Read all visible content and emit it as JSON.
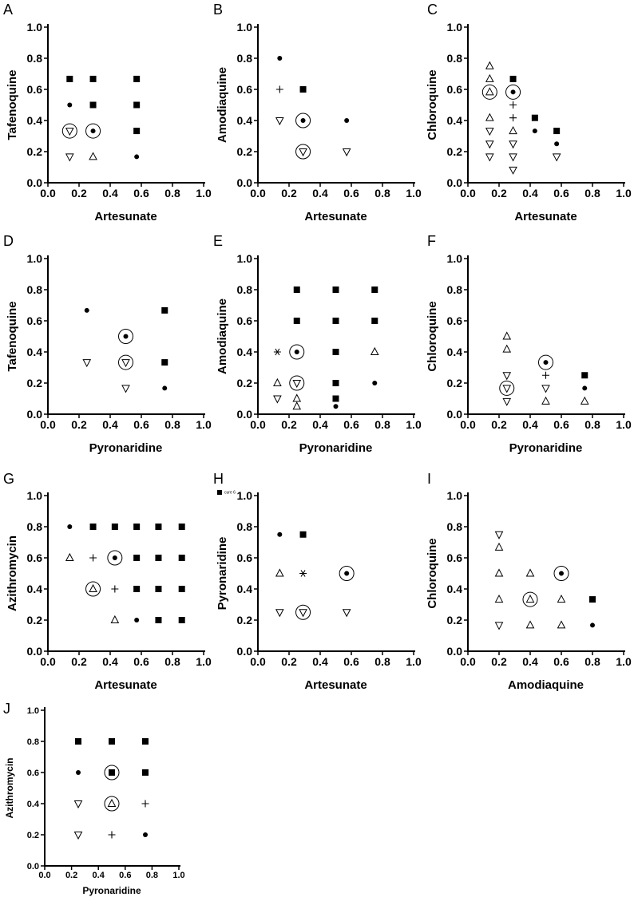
{
  "figure": {
    "legend_label": "cure 6"
  },
  "marker_names": {
    "square": "filled-square",
    "dot": "filled-dot",
    "tri_up": "open-triangle-up",
    "tri_down": "open-triangle-down",
    "plus": "plus",
    "star": "asterisk",
    "ring": "circle-highlight"
  },
  "chart_data": [
    {
      "id": "A",
      "type": "scatter",
      "panel_label": "A",
      "xlabel": "Artesunate",
      "ylabel": "Tafenoquine",
      "xlim": [
        0,
        1
      ],
      "ylim": [
        0,
        1
      ],
      "xticks": [
        "0.0",
        "0.2",
        "0.4",
        "0.6",
        "0.8",
        "1.0"
      ],
      "yticks": [
        "0.0",
        "0.2",
        "0.4",
        "0.6",
        "0.8",
        "1.0"
      ],
      "points": [
        {
          "x": 0.14,
          "y": 0.667,
          "m": "square"
        },
        {
          "x": 0.29,
          "y": 0.667,
          "m": "square"
        },
        {
          "x": 0.57,
          "y": 0.667,
          "m": "square"
        },
        {
          "x": 0.14,
          "y": 0.5,
          "m": "dot"
        },
        {
          "x": 0.29,
          "y": 0.5,
          "m": "square"
        },
        {
          "x": 0.57,
          "y": 0.5,
          "m": "square"
        },
        {
          "x": 0.14,
          "y": 0.333,
          "m": "tri_down",
          "ring": true
        },
        {
          "x": 0.29,
          "y": 0.333,
          "m": "dot",
          "ring": true
        },
        {
          "x": 0.57,
          "y": 0.333,
          "m": "square"
        },
        {
          "x": 0.14,
          "y": 0.167,
          "m": "tri_down"
        },
        {
          "x": 0.29,
          "y": 0.167,
          "m": "tri_up"
        },
        {
          "x": 0.57,
          "y": 0.167,
          "m": "dot"
        }
      ]
    },
    {
      "id": "B",
      "type": "scatter",
      "panel_label": "B",
      "xlabel": "Artesunate",
      "ylabel": "Amodiaquine",
      "xlim": [
        0,
        1
      ],
      "ylim": [
        0,
        1
      ],
      "xticks": [
        "0.0",
        "0.2",
        "0.4",
        "0.6",
        "0.8",
        "1.0"
      ],
      "yticks": [
        "0.0",
        "0.2",
        "0.4",
        "0.6",
        "0.8",
        "1.0"
      ],
      "points": [
        {
          "x": 0.14,
          "y": 0.8,
          "m": "dot"
        },
        {
          "x": 0.14,
          "y": 0.6,
          "m": "plus"
        },
        {
          "x": 0.29,
          "y": 0.6,
          "m": "square"
        },
        {
          "x": 0.14,
          "y": 0.4,
          "m": "tri_down"
        },
        {
          "x": 0.29,
          "y": 0.4,
          "m": "dot",
          "ring": true
        },
        {
          "x": 0.57,
          "y": 0.4,
          "m": "dot"
        },
        {
          "x": 0.29,
          "y": 0.2,
          "m": "tri_down",
          "ring": true
        },
        {
          "x": 0.57,
          "y": 0.2,
          "m": "tri_down"
        }
      ]
    },
    {
      "id": "C",
      "type": "scatter",
      "panel_label": "C",
      "xlabel": "Artesunate",
      "ylabel": "Chloroquine",
      "xlim": [
        0,
        1
      ],
      "ylim": [
        0,
        1
      ],
      "xticks": [
        "0.0",
        "0.2",
        "0.4",
        "0.6",
        "0.8",
        "1.0"
      ],
      "yticks": [
        "0.0",
        "0.2",
        "0.4",
        "0.6",
        "0.8",
        "1.0"
      ],
      "points": [
        {
          "x": 0.14,
          "y": 0.75,
          "m": "tri_up"
        },
        {
          "x": 0.14,
          "y": 0.667,
          "m": "tri_up"
        },
        {
          "x": 0.14,
          "y": 0.583,
          "m": "tri_up",
          "ring": true
        },
        {
          "x": 0.14,
          "y": 0.417,
          "m": "tri_up"
        },
        {
          "x": 0.14,
          "y": 0.333,
          "m": "tri_down"
        },
        {
          "x": 0.14,
          "y": 0.25,
          "m": "tri_down"
        },
        {
          "x": 0.14,
          "y": 0.167,
          "m": "tri_down"
        },
        {
          "x": 0.29,
          "y": 0.667,
          "m": "square"
        },
        {
          "x": 0.29,
          "y": 0.583,
          "m": "dot",
          "ring": true
        },
        {
          "x": 0.29,
          "y": 0.5,
          "m": "plus"
        },
        {
          "x": 0.29,
          "y": 0.417,
          "m": "plus"
        },
        {
          "x": 0.29,
          "y": 0.333,
          "m": "tri_up"
        },
        {
          "x": 0.29,
          "y": 0.25,
          "m": "tri_down"
        },
        {
          "x": 0.29,
          "y": 0.167,
          "m": "tri_down"
        },
        {
          "x": 0.29,
          "y": 0.083,
          "m": "tri_down"
        },
        {
          "x": 0.43,
          "y": 0.417,
          "m": "square"
        },
        {
          "x": 0.43,
          "y": 0.333,
          "m": "dot"
        },
        {
          "x": 0.57,
          "y": 0.333,
          "m": "square"
        },
        {
          "x": 0.57,
          "y": 0.25,
          "m": "dot"
        },
        {
          "x": 0.57,
          "y": 0.167,
          "m": "tri_down"
        }
      ]
    },
    {
      "id": "D",
      "type": "scatter",
      "panel_label": "D",
      "xlabel": "Pyronaridine",
      "ylabel": "Tafenoquine",
      "xlim": [
        0,
        1
      ],
      "ylim": [
        0,
        1
      ],
      "xticks": [
        "0.0",
        "0.2",
        "0.4",
        "0.6",
        "0.8",
        "1.0"
      ],
      "yticks": [
        "0.0",
        "0.2",
        "0.4",
        "0.6",
        "0.8",
        "1.0"
      ],
      "points": [
        {
          "x": 0.25,
          "y": 0.667,
          "m": "dot"
        },
        {
          "x": 0.25,
          "y": 0.333,
          "m": "tri_down"
        },
        {
          "x": 0.5,
          "y": 0.5,
          "m": "dot",
          "ring": true
        },
        {
          "x": 0.5,
          "y": 0.333,
          "m": "tri_down",
          "ring": true
        },
        {
          "x": 0.5,
          "y": 0.167,
          "m": "tri_down"
        },
        {
          "x": 0.75,
          "y": 0.667,
          "m": "square"
        },
        {
          "x": 0.75,
          "y": 0.333,
          "m": "square"
        },
        {
          "x": 0.75,
          "y": 0.167,
          "m": "dot"
        }
      ]
    },
    {
      "id": "E",
      "type": "scatter",
      "panel_label": "E",
      "xlabel": "Pyronaridine",
      "ylabel": "Amodiaquine",
      "xlim": [
        0,
        1
      ],
      "ylim": [
        0,
        1
      ],
      "xticks": [
        "0.0",
        "0.2",
        "0.4",
        "0.6",
        "0.8",
        "1.0"
      ],
      "yticks": [
        "0.0",
        "0.2",
        "0.4",
        "0.6",
        "0.8",
        "1.0"
      ],
      "points": [
        {
          "x": 0.125,
          "y": 0.4,
          "m": "star"
        },
        {
          "x": 0.125,
          "y": 0.2,
          "m": "tri_up"
        },
        {
          "x": 0.125,
          "y": 0.1,
          "m": "tri_down"
        },
        {
          "x": 0.25,
          "y": 0.8,
          "m": "square"
        },
        {
          "x": 0.25,
          "y": 0.6,
          "m": "square"
        },
        {
          "x": 0.25,
          "y": 0.4,
          "m": "dot",
          "ring": true
        },
        {
          "x": 0.25,
          "y": 0.2,
          "m": "tri_down",
          "ring": true
        },
        {
          "x": 0.25,
          "y": 0.1,
          "m": "tri_up"
        },
        {
          "x": 0.25,
          "y": 0.05,
          "m": "tri_up"
        },
        {
          "x": 0.5,
          "y": 0.8,
          "m": "square"
        },
        {
          "x": 0.5,
          "y": 0.6,
          "m": "square"
        },
        {
          "x": 0.5,
          "y": 0.4,
          "m": "square"
        },
        {
          "x": 0.5,
          "y": 0.2,
          "m": "square"
        },
        {
          "x": 0.5,
          "y": 0.1,
          "m": "square"
        },
        {
          "x": 0.5,
          "y": 0.05,
          "m": "dot"
        },
        {
          "x": 0.75,
          "y": 0.8,
          "m": "square"
        },
        {
          "x": 0.75,
          "y": 0.6,
          "m": "square"
        },
        {
          "x": 0.75,
          "y": 0.4,
          "m": "tri_up"
        },
        {
          "x": 0.75,
          "y": 0.2,
          "m": "dot"
        }
      ]
    },
    {
      "id": "F",
      "type": "scatter",
      "panel_label": "F",
      "xlabel": "Pyronaridine",
      "ylabel": "Chloroquine",
      "xlim": [
        0,
        1
      ],
      "ylim": [
        0,
        1
      ],
      "xticks": [
        "0.0",
        "0.2",
        "0.4",
        "0.6",
        "0.8",
        "1.0"
      ],
      "yticks": [
        "0.0",
        "0.2",
        "0.4",
        "0.6",
        "0.8",
        "1.0"
      ],
      "points": [
        {
          "x": 0.25,
          "y": 0.5,
          "m": "tri_up"
        },
        {
          "x": 0.25,
          "y": 0.417,
          "m": "tri_up"
        },
        {
          "x": 0.25,
          "y": 0.25,
          "m": "tri_down"
        },
        {
          "x": 0.25,
          "y": 0.167,
          "m": "tri_down",
          "ring": true
        },
        {
          "x": 0.25,
          "y": 0.083,
          "m": "tri_down"
        },
        {
          "x": 0.5,
          "y": 0.333,
          "m": "dot",
          "ring": true
        },
        {
          "x": 0.5,
          "y": 0.25,
          "m": "plus"
        },
        {
          "x": 0.5,
          "y": 0.167,
          "m": "tri_down"
        },
        {
          "x": 0.5,
          "y": 0.083,
          "m": "tri_up"
        },
        {
          "x": 0.75,
          "y": 0.25,
          "m": "square"
        },
        {
          "x": 0.75,
          "y": 0.167,
          "m": "dot"
        },
        {
          "x": 0.75,
          "y": 0.083,
          "m": "tri_up"
        }
      ]
    },
    {
      "id": "G",
      "type": "scatter",
      "panel_label": "G",
      "xlabel": "Artesunate",
      "ylabel": "Azithromycin",
      "xlim": [
        0,
        1
      ],
      "ylim": [
        0,
        1
      ],
      "xticks": [
        "0.0",
        "0.2",
        "0.4",
        "0.6",
        "0.8",
        "1.0"
      ],
      "yticks": [
        "0.0",
        "0.2",
        "0.4",
        "0.6",
        "0.8",
        "1.0"
      ],
      "points": [
        {
          "x": 0.14,
          "y": 0.8,
          "m": "dot"
        },
        {
          "x": 0.29,
          "y": 0.8,
          "m": "square"
        },
        {
          "x": 0.43,
          "y": 0.8,
          "m": "square"
        },
        {
          "x": 0.57,
          "y": 0.8,
          "m": "square"
        },
        {
          "x": 0.71,
          "y": 0.8,
          "m": "square"
        },
        {
          "x": 0.86,
          "y": 0.8,
          "m": "square"
        },
        {
          "x": 0.14,
          "y": 0.6,
          "m": "tri_up"
        },
        {
          "x": 0.29,
          "y": 0.6,
          "m": "plus"
        },
        {
          "x": 0.43,
          "y": 0.6,
          "m": "dot",
          "ring": true
        },
        {
          "x": 0.57,
          "y": 0.6,
          "m": "square"
        },
        {
          "x": 0.71,
          "y": 0.6,
          "m": "square"
        },
        {
          "x": 0.86,
          "y": 0.6,
          "m": "square"
        },
        {
          "x": 0.29,
          "y": 0.4,
          "m": "tri_up",
          "ring": true
        },
        {
          "x": 0.43,
          "y": 0.4,
          "m": "plus"
        },
        {
          "x": 0.57,
          "y": 0.4,
          "m": "square"
        },
        {
          "x": 0.71,
          "y": 0.4,
          "m": "square"
        },
        {
          "x": 0.86,
          "y": 0.4,
          "m": "square"
        },
        {
          "x": 0.43,
          "y": 0.2,
          "m": "tri_up"
        },
        {
          "x": 0.57,
          "y": 0.2,
          "m": "dot"
        },
        {
          "x": 0.71,
          "y": 0.2,
          "m": "square"
        },
        {
          "x": 0.86,
          "y": 0.2,
          "m": "square"
        }
      ]
    },
    {
      "id": "H",
      "type": "scatter",
      "panel_label": "H",
      "xlabel": "Artesunate",
      "ylabel": "Pyronaridine",
      "xlim": [
        0,
        1
      ],
      "ylim": [
        0,
        1
      ],
      "xticks": [
        "0.0",
        "0.2",
        "0.4",
        "0.6",
        "0.8",
        "1.0"
      ],
      "yticks": [
        "0.0",
        "0.2",
        "0.4",
        "0.6",
        "0.8",
        "1.0"
      ],
      "legend": true,
      "points": [
        {
          "x": 0.14,
          "y": 0.75,
          "m": "dot"
        },
        {
          "x": 0.29,
          "y": 0.75,
          "m": "square"
        },
        {
          "x": 0.14,
          "y": 0.5,
          "m": "tri_up"
        },
        {
          "x": 0.29,
          "y": 0.5,
          "m": "star"
        },
        {
          "x": 0.57,
          "y": 0.5,
          "m": "dot",
          "ring": true
        },
        {
          "x": 0.14,
          "y": 0.25,
          "m": "tri_down"
        },
        {
          "x": 0.29,
          "y": 0.25,
          "m": "tri_down",
          "ring": true
        },
        {
          "x": 0.57,
          "y": 0.25,
          "m": "tri_down"
        }
      ]
    },
    {
      "id": "I",
      "type": "scatter",
      "panel_label": "I",
      "xlabel": "Amodiaquine",
      "ylabel": "Chloroquine",
      "xlim": [
        0,
        1
      ],
      "ylim": [
        0,
        1
      ],
      "xticks": [
        "0.0",
        "0.2",
        "0.4",
        "0.6",
        "0.8",
        "1.0"
      ],
      "yticks": [
        "0.0",
        "0.2",
        "0.4",
        "0.6",
        "0.8",
        "1.0"
      ],
      "points": [
        {
          "x": 0.2,
          "y": 0.75,
          "m": "tri_down"
        },
        {
          "x": 0.2,
          "y": 0.667,
          "m": "tri_up"
        },
        {
          "x": 0.2,
          "y": 0.5,
          "m": "tri_up"
        },
        {
          "x": 0.2,
          "y": 0.333,
          "m": "tri_up"
        },
        {
          "x": 0.2,
          "y": 0.167,
          "m": "tri_down"
        },
        {
          "x": 0.4,
          "y": 0.5,
          "m": "tri_up"
        },
        {
          "x": 0.4,
          "y": 0.333,
          "m": "tri_up",
          "ring": true
        },
        {
          "x": 0.4,
          "y": 0.167,
          "m": "tri_up"
        },
        {
          "x": 0.6,
          "y": 0.5,
          "m": "dot",
          "ring": true
        },
        {
          "x": 0.6,
          "y": 0.333,
          "m": "tri_up"
        },
        {
          "x": 0.6,
          "y": 0.167,
          "m": "tri_up"
        },
        {
          "x": 0.8,
          "y": 0.333,
          "m": "square"
        },
        {
          "x": 0.8,
          "y": 0.167,
          "m": "dot"
        }
      ]
    },
    {
      "id": "J",
      "type": "scatter",
      "panel_label": "J",
      "xlabel": "Pyronaridine",
      "ylabel": "Azithromycin",
      "xlim": [
        0,
        1
      ],
      "ylim": [
        0,
        1
      ],
      "xticks": [
        "0.0",
        "0.2",
        "0.4",
        "0.6",
        "0.8",
        "1.0"
      ],
      "yticks": [
        "0.0",
        "0.2",
        "0.4",
        "0.6",
        "0.8",
        "1.0"
      ],
      "small": true,
      "points": [
        {
          "x": 0.25,
          "y": 0.8,
          "m": "square"
        },
        {
          "x": 0.5,
          "y": 0.8,
          "m": "square"
        },
        {
          "x": 0.75,
          "y": 0.8,
          "m": "square"
        },
        {
          "x": 0.25,
          "y": 0.6,
          "m": "dot"
        },
        {
          "x": 0.5,
          "y": 0.6,
          "m": "square",
          "ring": true
        },
        {
          "x": 0.75,
          "y": 0.6,
          "m": "square"
        },
        {
          "x": 0.25,
          "y": 0.4,
          "m": "tri_down"
        },
        {
          "x": 0.5,
          "y": 0.4,
          "m": "tri_up",
          "ring": true
        },
        {
          "x": 0.75,
          "y": 0.4,
          "m": "plus"
        },
        {
          "x": 0.25,
          "y": 0.2,
          "m": "tri_down"
        },
        {
          "x": 0.5,
          "y": 0.2,
          "m": "plus"
        },
        {
          "x": 0.75,
          "y": 0.2,
          "m": "dot"
        }
      ]
    }
  ]
}
